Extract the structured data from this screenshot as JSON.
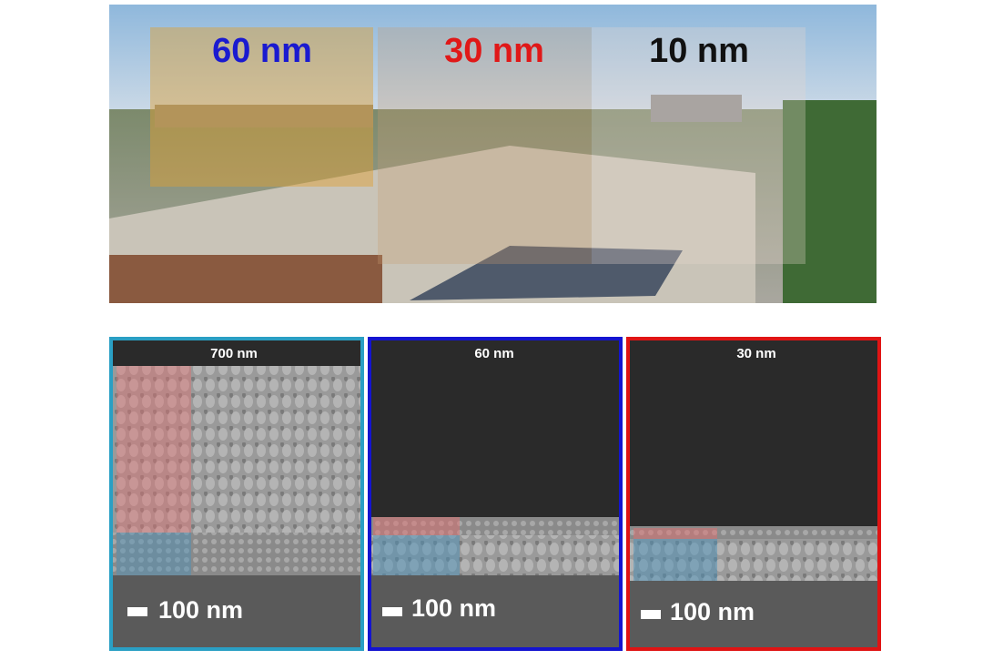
{
  "photo": {
    "labels": [
      "60 nm",
      "30 nm",
      "10 nm"
    ]
  },
  "panels": [
    {
      "title": "700 nm",
      "scale_bar": "100 nm"
    },
    {
      "title": "60 nm",
      "scale_bar": "100 nm"
    },
    {
      "title": "30 nm",
      "scale_bar": "100 nm"
    }
  ]
}
